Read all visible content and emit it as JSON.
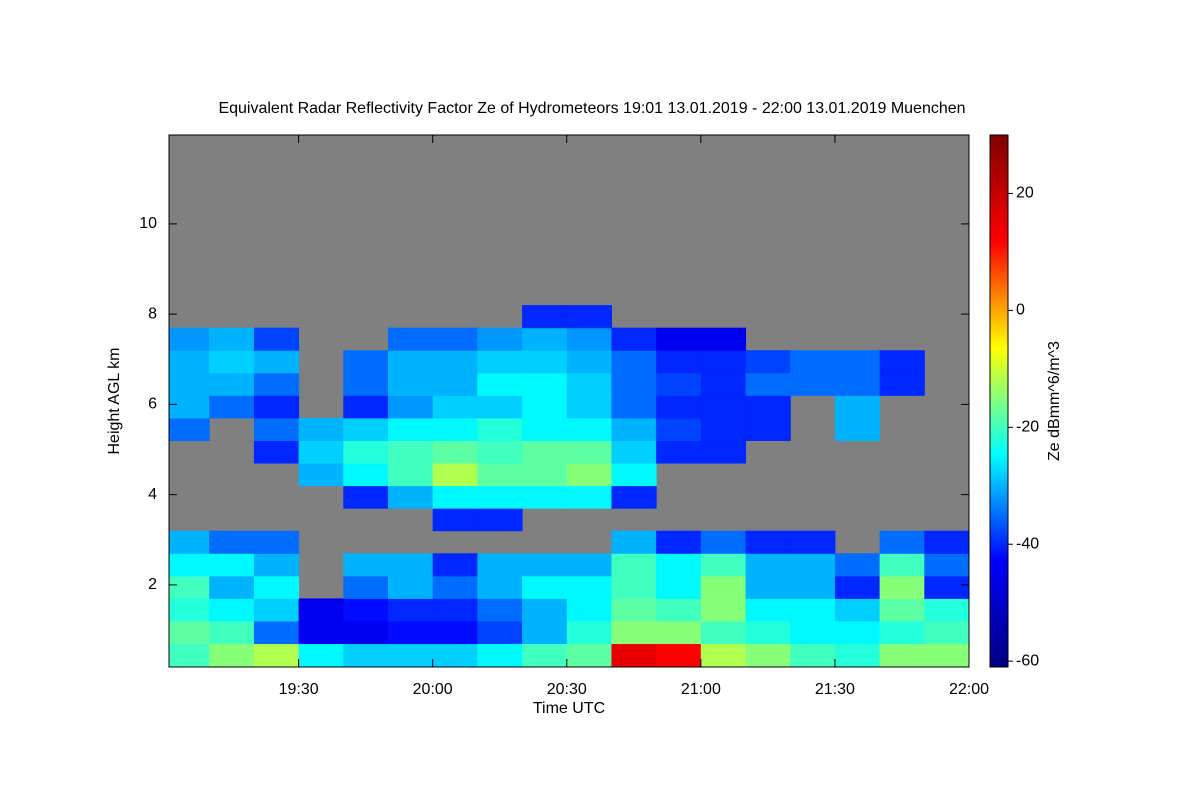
{
  "chart_data": {
    "type": "heatmap",
    "title": "Equivalent Radar Reflectivity Factor Ze of Hydrometeors   19:01 13.01.2019 - 22:00 13.01.2019 Muenchen",
    "xlabel": "Time UTC",
    "ylabel": "Height AGL km",
    "colorbar_label": "Ze dBmm^6/m^3",
    "background": "#808080",
    "colormap": [
      "#00007f",
      "#0000ff",
      "#00ffff",
      "#ffff00",
      "#ff0000",
      "#7f0000"
    ],
    "xlim": [
      1141,
      1320
    ],
    "xticks": [
      {
        "value": 1170,
        "label": "19:30"
      },
      {
        "value": 1200,
        "label": "20:00"
      },
      {
        "value": 1230,
        "label": "20:30"
      },
      {
        "value": 1260,
        "label": "21:00"
      },
      {
        "value": 1290,
        "label": "21:30"
      },
      {
        "value": 1320,
        "label": "22:00"
      }
    ],
    "ylim": [
      0.18,
      11.97
    ],
    "yticks": [
      2,
      4,
      6,
      8,
      10
    ],
    "clim": [
      -61,
      30
    ],
    "cticks": [
      -60,
      -40,
      -20,
      0,
      20
    ],
    "xbins": [
      1141,
      1150,
      1160,
      1170,
      1180,
      1190,
      1200,
      1210,
      1220,
      1230,
      1240,
      1250,
      1260,
      1270,
      1280,
      1290,
      1300,
      1310,
      1320
    ],
    "ybins": [
      0.2,
      0.7,
      1.2,
      1.7,
      2.2,
      2.7,
      3.2,
      3.7,
      4.2,
      4.7,
      5.2,
      5.7,
      6.2,
      6.7,
      7.2,
      7.7,
      8.2
    ],
    "z": [
      [
        -20,
        -15,
        -12,
        -25,
        -28,
        -28,
        -28,
        -25,
        -20,
        -18,
        15,
        12,
        -12,
        -15,
        -20,
        -22,
        -15,
        -15
      ],
      [
        -18,
        -20,
        -35,
        -45,
        -45,
        -42,
        -42,
        -38,
        -30,
        -22,
        -15,
        -15,
        -20,
        -22,
        -25,
        -25,
        -22,
        -20
      ],
      [
        -22,
        -25,
        -28,
        -45,
        -42,
        -40,
        -40,
        -35,
        -30,
        -25,
        -18,
        -20,
        -15,
        -25,
        -25,
        -28,
        -18,
        -22
      ],
      [
        -20,
        -30,
        -25,
        null,
        -35,
        -30,
        -35,
        -30,
        -25,
        -25,
        -20,
        -25,
        -15,
        -30,
        -30,
        -40,
        -15,
        -40
      ],
      [
        -25,
        -25,
        -30,
        null,
        -30,
        -30,
        -40,
        -30,
        -30,
        -30,
        -20,
        -25,
        -20,
        -30,
        -30,
        -35,
        -20,
        -35
      ],
      [
        -30,
        -35,
        -35,
        null,
        null,
        null,
        null,
        null,
        null,
        null,
        -30,
        -40,
        -35,
        -40,
        -40,
        null,
        -35,
        -40
      ],
      [
        null,
        null,
        null,
        null,
        null,
        null,
        -40,
        -40,
        null,
        null,
        null,
        null,
        null,
        null,
        null,
        null,
        null,
        null
      ],
      [
        null,
        null,
        null,
        null,
        -40,
        -30,
        -25,
        -25,
        -25,
        -25,
        -40,
        null,
        null,
        null,
        null,
        null,
        null,
        null
      ],
      [
        null,
        null,
        null,
        -30,
        -25,
        -20,
        -12,
        -18,
        -18,
        -15,
        -25,
        null,
        null,
        null,
        null,
        null,
        null,
        null
      ],
      [
        null,
        null,
        -40,
        -28,
        -22,
        -20,
        -18,
        -20,
        -18,
        -18,
        -28,
        -40,
        -40,
        null,
        null,
        null,
        null,
        null
      ],
      [
        -35,
        null,
        -35,
        -30,
        -28,
        -25,
        -25,
        -22,
        -25,
        -25,
        -30,
        -38,
        -40,
        -40,
        null,
        -30,
        null,
        null
      ],
      [
        -30,
        -35,
        -40,
        null,
        -40,
        -32,
        -28,
        -28,
        -25,
        -28,
        -35,
        -40,
        -40,
        -40,
        null,
        -30,
        null,
        null
      ],
      [
        -30,
        -30,
        -35,
        null,
        -35,
        -30,
        -30,
        -25,
        -25,
        -28,
        -35,
        -38,
        -40,
        -35,
        -35,
        -35,
        -40,
        null
      ],
      [
        -30,
        -28,
        -30,
        null,
        -35,
        -30,
        -30,
        -28,
        -28,
        -30,
        -35,
        -40,
        -40,
        -38,
        -35,
        -35,
        -40,
        null
      ],
      [
        -32,
        -30,
        -38,
        null,
        null,
        -35,
        -35,
        -32,
        -30,
        -32,
        -40,
        -45,
        -45,
        null,
        null,
        null,
        null,
        null
      ],
      [
        null,
        null,
        null,
        null,
        null,
        null,
        null,
        null,
        -40,
        -40,
        null,
        null,
        null,
        null,
        null,
        null,
        null,
        null
      ]
    ]
  }
}
